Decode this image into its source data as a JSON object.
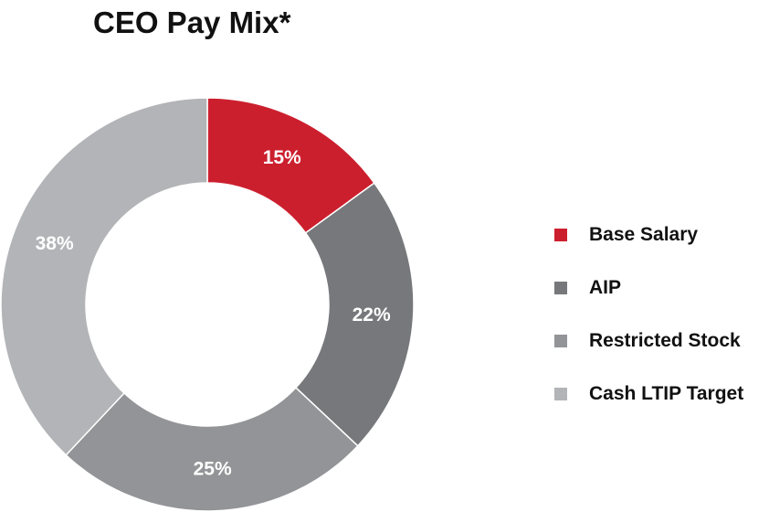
{
  "chart_data": {
    "type": "pie",
    "variant": "donut",
    "title": "CEO Pay Mix*",
    "legend_position": "right",
    "slices": [
      {
        "label": "Base Salary",
        "value": 15,
        "display": "15%",
        "color": "#cc1f2e"
      },
      {
        "label": "AIP",
        "value": 22,
        "display": "22%",
        "color": "#77787b"
      },
      {
        "label": "Restricted Stock",
        "value": 25,
        "display": "25%",
        "color": "#939497"
      },
      {
        "label": "Cash LTIP Target",
        "value": 38,
        "display": "38%",
        "color": "#b3b4b7"
      }
    ]
  }
}
